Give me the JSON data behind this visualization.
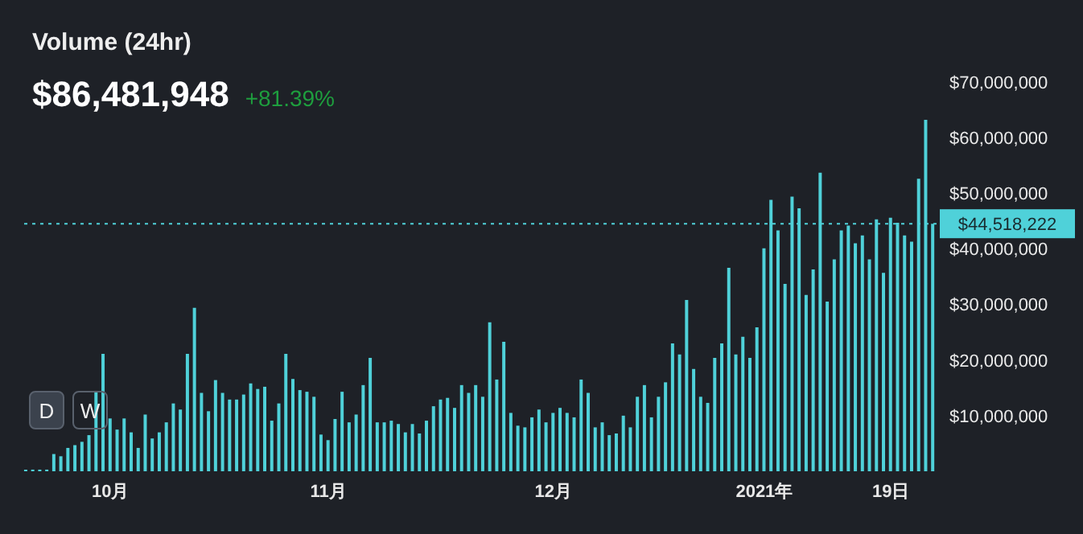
{
  "chart_data": {
    "type": "bar",
    "title": "Volume (24hr)",
    "subtitle": "$86,481,948",
    "annotations": [
      "+81.39%",
      "D",
      "W"
    ],
    "categories": [
      null,
      null,
      null,
      null,
      null,
      null,
      null,
      null,
      null,
      null,
      null,
      null,
      "10月",
      null,
      null,
      null,
      null,
      null,
      null,
      null,
      null,
      null,
      null,
      null,
      null,
      null,
      null,
      null,
      null,
      null,
      null,
      null,
      null,
      null,
      null,
      null,
      null,
      null,
      null,
      null,
      null,
      null,
      null,
      "11月",
      null,
      null,
      null,
      null,
      null,
      null,
      null,
      null,
      null,
      null,
      null,
      null,
      null,
      null,
      null,
      null,
      null,
      null,
      null,
      null,
      null,
      null,
      null,
      null,
      null,
      null,
      null,
      null,
      null,
      null,
      null,
      "12月",
      null,
      null,
      null,
      null,
      null,
      null,
      null,
      null,
      null,
      null,
      null,
      null,
      null,
      null,
      null,
      null,
      null,
      null,
      null,
      null,
      null,
      null,
      null,
      null,
      null,
      null,
      null,
      null,
      null,
      "2021年",
      null,
      null,
      null,
      null,
      null,
      null,
      null,
      null,
      null,
      null,
      null,
      null,
      null,
      null,
      null,
      null,
      null,
      "19日",
      null,
      null,
      null,
      null,
      null,
      null
    ],
    "values": [
      300000,
      300000,
      300000,
      300000,
      3100000,
      2700000,
      4200000,
      4700000,
      5300000,
      6500000,
      14300000,
      21100000,
      9500000,
      7500000,
      9500000,
      7000000,
      4200000,
      10200000,
      5900000,
      7000000,
      8800000,
      12200000,
      11100000,
      21100000,
      29400000,
      14100000,
      10800000,
      16400000,
      14100000,
      12900000,
      12900000,
      13800000,
      15800000,
      14800000,
      15200000,
      9100000,
      12200000,
      21100000,
      16600000,
      14600000,
      14300000,
      13400000,
      6600000,
      5600000,
      9400000,
      14300000,
      8800000,
      10200000,
      15500000,
      20400000,
      8800000,
      8800000,
      9100000,
      8500000,
      7000000,
      8500000,
      6800000,
      9100000,
      11700000,
      12900000,
      13200000,
      11400000,
      15500000,
      14100000,
      15500000,
      13400000,
      26800000,
      16500000,
      23300000,
      10500000,
      8200000,
      7900000,
      9700000,
      11100000,
      8800000,
      10500000,
      11400000,
      10500000,
      9700000,
      16500000,
      14100000,
      7900000,
      8800000,
      6500000,
      6800000,
      10000000,
      7900000,
      13400000,
      15500000,
      9700000,
      13400000,
      16000000,
      23000000,
      21000000,
      30800000,
      18400000,
      13400000,
      12300000,
      20400000,
      23000000,
      36600000,
      21000000,
      24200000,
      20400000,
      25900000,
      40100000,
      48800000,
      43300000,
      33700000,
      49400000,
      47300000,
      31700000,
      36300000,
      53700000,
      30500000,
      38100000,
      43300000,
      44200000,
      41000000,
      42400000,
      38100000,
      45300000,
      35700000,
      45600000,
      44700000,
      42400000,
      41300000,
      52600000,
      63200000,
      44500000
    ],
    "color": "#4fd1d9",
    "ylim": [
      0,
      70000000
    ],
    "yticks": [
      {
        "value": 10000000,
        "label": "$10,000,000"
      },
      {
        "value": 20000000,
        "label": "$20,000,000"
      },
      {
        "value": 30000000,
        "label": "$30,000,000"
      },
      {
        "value": 40000000,
        "label": "$40,000,000"
      },
      {
        "value": 50000000,
        "label": "$50,000,000"
      },
      {
        "value": 60000000,
        "label": "$60,000,000"
      },
      {
        "value": 70000000,
        "label": "$70,000,000"
      }
    ],
    "ref_lines": [
      {
        "axis": "y",
        "value": 44518222,
        "label": "$44,518,222",
        "color": "#4fd1d9",
        "line_style": "dotted"
      }
    ],
    "grid": false,
    "legend": false
  }
}
